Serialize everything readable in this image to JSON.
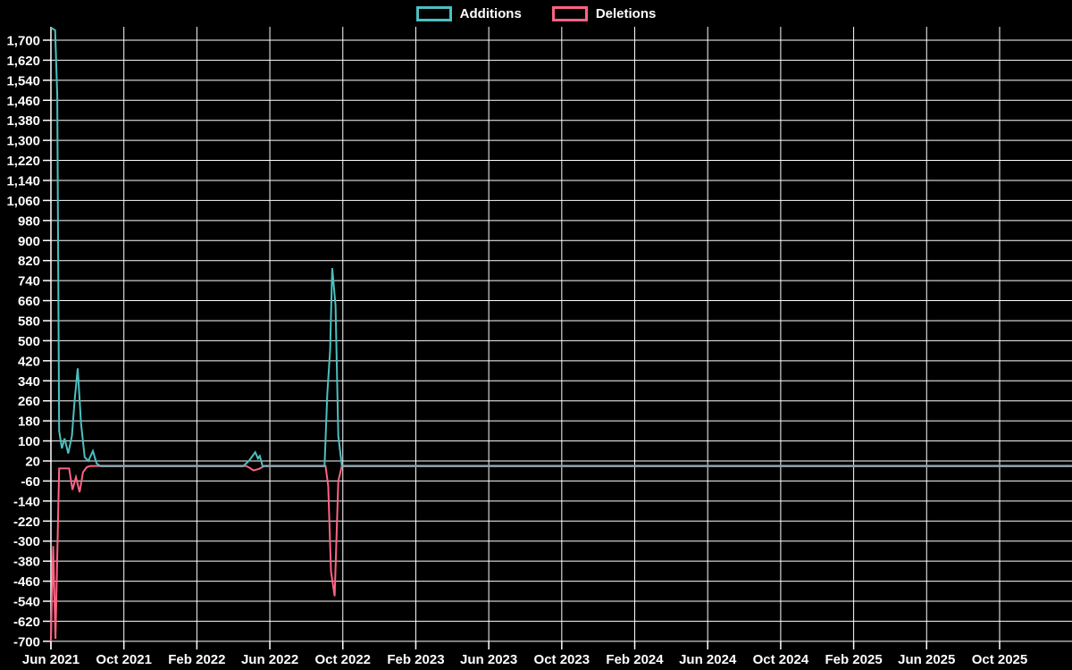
{
  "chart_data": {
    "type": "line",
    "title": "",
    "background": "#000000",
    "grid_color": "#ffffff",
    "text_color": "#ffffff",
    "overlap_color": "#8fa3ad",
    "legend": {
      "position": "top",
      "entries": [
        "Additions",
        "Deletions"
      ]
    },
    "x_axis": {
      "tick_labels": [
        "Jun 2021",
        "Oct 2021",
        "Feb 2022",
        "Jun 2022",
        "Oct 2022",
        "Feb 2023",
        "Jun 2023",
        "Oct 2023",
        "Feb 2024",
        "Jun 2024",
        "Oct 2024",
        "Feb 2025",
        "Jun 2025",
        "Oct 2025"
      ],
      "tick_month_offsets": [
        0,
        4,
        8,
        12,
        16,
        20,
        24,
        28,
        32,
        36,
        40,
        44,
        48,
        52
      ]
    },
    "y_axis": {
      "min": -700,
      "max": 1700,
      "step": 80,
      "tick_values": [
        1700,
        1620,
        1540,
        1460,
        1380,
        1300,
        1220,
        1140,
        1060,
        980,
        900,
        820,
        740,
        660,
        580,
        500,
        420,
        340,
        260,
        180,
        100,
        20,
        -60,
        -140,
        -220,
        -300,
        -380,
        -460,
        -540,
        -620,
        -700
      ],
      "tick_labels": [
        "1,700",
        "1,620",
        "1,540",
        "1,460",
        "1,380",
        "1,300",
        "1,220",
        "1,140",
        "1,060",
        "980",
        "900",
        "820",
        "740",
        "660",
        "580",
        "500",
        "420",
        "340",
        "260",
        "180",
        "100",
        "20",
        "-60",
        "-140",
        "-220",
        "-300",
        "-380",
        "-460",
        "-540",
        "-620",
        "-700"
      ]
    },
    "series": [
      {
        "name": "Additions",
        "color": "#4bc0c0",
        "points_month_value": [
          [
            0,
            1750
          ],
          [
            0.23,
            1740
          ],
          [
            0.35,
            1480
          ],
          [
            0.45,
            140
          ],
          [
            0.6,
            70
          ],
          [
            0.75,
            110
          ],
          [
            0.95,
            50
          ],
          [
            1.15,
            120
          ],
          [
            1.3,
            260
          ],
          [
            1.47,
            390
          ],
          [
            1.65,
            170
          ],
          [
            1.85,
            35
          ],
          [
            2.05,
            20
          ],
          [
            2.3,
            60
          ],
          [
            2.5,
            10
          ],
          [
            2.7,
            0
          ],
          [
            10.55,
            0
          ],
          [
            10.85,
            20
          ],
          [
            11.05,
            40
          ],
          [
            11.2,
            55
          ],
          [
            11.35,
            30
          ],
          [
            11.45,
            40
          ],
          [
            11.6,
            0
          ],
          [
            15.0,
            0
          ],
          [
            15.15,
            290
          ],
          [
            15.3,
            460
          ],
          [
            15.42,
            790
          ],
          [
            15.6,
            640
          ],
          [
            15.75,
            120
          ],
          [
            15.95,
            0
          ],
          [
            55.96,
            0
          ]
        ]
      },
      {
        "name": "Deletions",
        "color": "#ff6384",
        "points_month_value": [
          [
            0,
            -700
          ],
          [
            0.12,
            -320
          ],
          [
            0.25,
            -690
          ],
          [
            0.45,
            -10
          ],
          [
            1.0,
            -10
          ],
          [
            1.18,
            -95
          ],
          [
            1.37,
            -45
          ],
          [
            1.57,
            -105
          ],
          [
            1.76,
            -25
          ],
          [
            1.96,
            -5
          ],
          [
            2.15,
            0
          ],
          [
            10.7,
            0
          ],
          [
            10.9,
            -8
          ],
          [
            11.1,
            -18
          ],
          [
            11.4,
            -12
          ],
          [
            11.7,
            0
          ],
          [
            15.05,
            0
          ],
          [
            15.2,
            -80
          ],
          [
            15.35,
            -420
          ],
          [
            15.55,
            -520
          ],
          [
            15.75,
            -60
          ],
          [
            15.95,
            0
          ],
          [
            55.96,
            0
          ]
        ]
      }
    ],
    "overlap_zero_segments_months": [
      [
        2.7,
        10.55
      ],
      [
        11.7,
        15.0
      ],
      [
        15.95,
        55.96
      ]
    ]
  }
}
